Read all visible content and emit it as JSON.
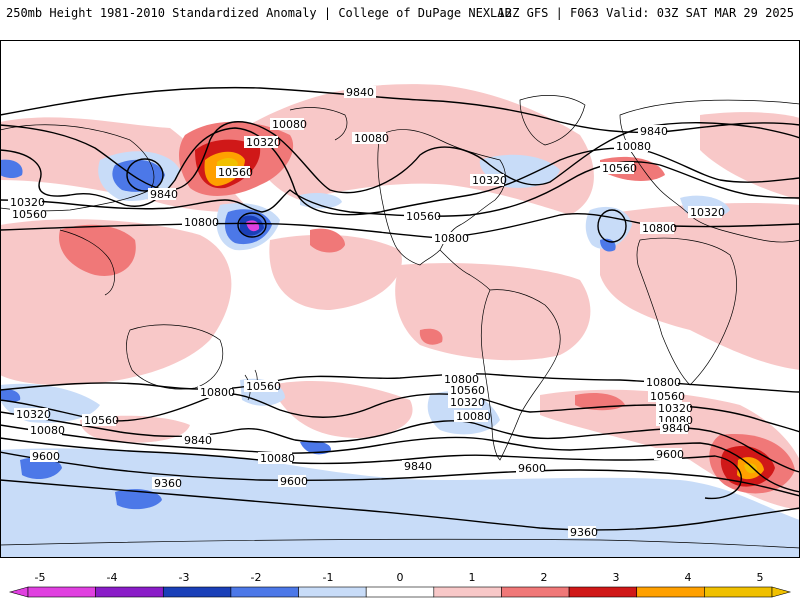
{
  "header": {
    "left_title": "250mb Height 1981-2010 Standardized Anomaly | College of DuPage NEXLAB",
    "right_title": "12Z GFS | F063 Valid: 03Z SAT MAR 29 2025"
  },
  "colorbar": {
    "ticks": [
      "-5",
      "-4",
      "-3",
      "-2",
      "-1",
      "0",
      "1",
      "2",
      "3",
      "4",
      "5"
    ],
    "colors": [
      "#e040e0",
      "#8a1cc8",
      "#1a3fb8",
      "#4c78e8",
      "#c8dcf8",
      "#ffffff",
      "#f8c8c8",
      "#f07878",
      "#d01818",
      "#ffa000",
      "#f0c000"
    ]
  },
  "contour_labels": [
    {
      "id": "9840-npac",
      "text": "9840"
    },
    {
      "id": "9840-asia",
      "text": "9840"
    },
    {
      "id": "9840-europe",
      "text": "9840"
    },
    {
      "id": "10080-alaska",
      "text": "10080"
    },
    {
      "id": "10080-canada",
      "text": "10080"
    },
    {
      "id": "10080-atlantic",
      "text": "10080"
    },
    {
      "id": "10320-alaska",
      "text": "10320"
    },
    {
      "id": "10320-usa",
      "text": "10320"
    },
    {
      "id": "10320-west",
      "text": "10320"
    },
    {
      "id": "10320-europe",
      "text": "10320"
    },
    {
      "id": "10560-alaska",
      "text": "10560"
    },
    {
      "id": "10560-atlantic",
      "text": "10560"
    },
    {
      "id": "10560-west",
      "text": "10560"
    },
    {
      "id": "10560-gulf",
      "text": "10560"
    },
    {
      "id": "10800-pacific",
      "text": "10800"
    },
    {
      "id": "10800-mexico",
      "text": "10800"
    },
    {
      "id": "10800-africa",
      "text": "10800"
    },
    {
      "id": "s10800-sw",
      "text": "10800"
    },
    {
      "id": "s10800-sa",
      "text": "10800"
    },
    {
      "id": "s10800-indian",
      "text": "10800"
    },
    {
      "id": "s10560-pac",
      "text": "10560"
    },
    {
      "id": "s10560-sw",
      "text": "10560"
    },
    {
      "id": "s10560-sa",
      "text": "10560"
    },
    {
      "id": "s10560-indian",
      "text": "10560"
    },
    {
      "id": "s10320-sw",
      "text": "10320"
    },
    {
      "id": "s10320-pac",
      "text": "10320"
    },
    {
      "id": "s10320-indian",
      "text": "10320"
    },
    {
      "id": "s10080-sw",
      "text": "10080"
    },
    {
      "id": "s10080-pac",
      "text": "10080"
    },
    {
      "id": "s10080-sa",
      "text": "10080"
    },
    {
      "id": "s10080-indian",
      "text": "10080"
    },
    {
      "id": "s9840-sw",
      "text": "9840"
    },
    {
      "id": "s9840-sa",
      "text": "9840"
    },
    {
      "id": "s9840-indian",
      "text": "9840"
    },
    {
      "id": "s9600-sw",
      "text": "9600"
    },
    {
      "id": "s9600-pac",
      "text": "9600"
    },
    {
      "id": "s9600-sa",
      "text": "9600"
    },
    {
      "id": "s9600-indian",
      "text": "9600"
    },
    {
      "id": "s9360-pac",
      "text": "9360"
    },
    {
      "id": "s9360-atl",
      "text": "9360"
    }
  ]
}
